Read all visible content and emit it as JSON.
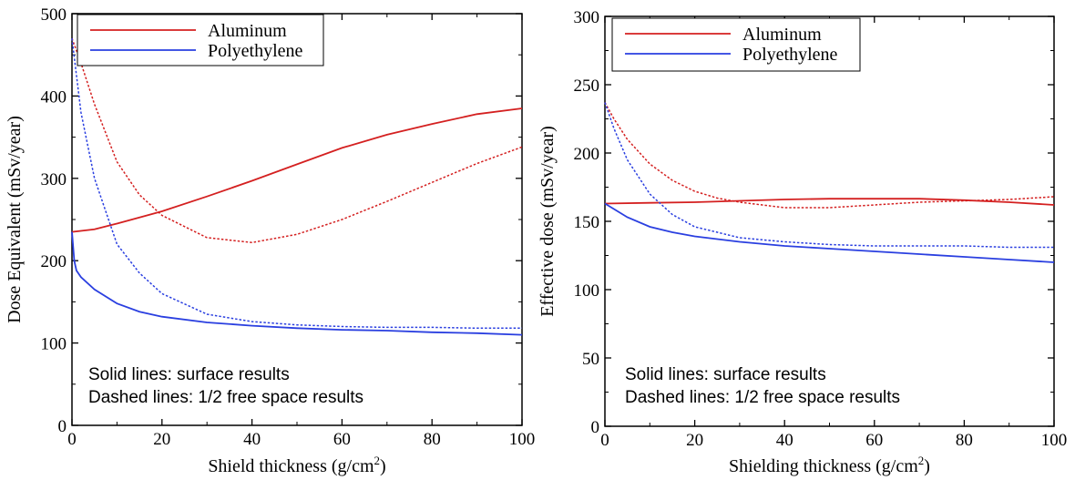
{
  "chart_data": [
    {
      "type": "line",
      "xlabel": "Shield thickness (g/cm",
      "xlabel_sup": "2",
      "xlabel_close": ")",
      "ylabel": "Dose Equivalent (mSv/year)",
      "xlim": [
        0,
        100
      ],
      "ylim": [
        0,
        500
      ],
      "xticks": [
        0,
        20,
        40,
        60,
        80,
        100
      ],
      "yticks": [
        0,
        100,
        200,
        300,
        400,
        500
      ],
      "legend": {
        "position": "top-left",
        "entries": [
          "Aluminum",
          "Polyethylene"
        ]
      },
      "annotations": [
        "Solid lines: surface results",
        "Dashed lines: 1/2 free space results"
      ],
      "series": [
        {
          "name": "Aluminum",
          "style": "solid",
          "color": "#d42020",
          "x": [
            0,
            5,
            10,
            20,
            30,
            40,
            50,
            60,
            70,
            80,
            90,
            100
          ],
          "y": [
            235,
            238,
            245,
            260,
            278,
            297,
            317,
            337,
            353,
            366,
            378,
            385
          ]
        },
        {
          "name": "Aluminum",
          "style": "dashed",
          "color": "#d42020",
          "x": [
            0,
            2,
            5,
            10,
            15,
            20,
            30,
            40,
            50,
            60,
            70,
            80,
            90,
            100
          ],
          "y": [
            470,
            440,
            390,
            320,
            280,
            255,
            228,
            222,
            232,
            250,
            272,
            295,
            318,
            338
          ]
        },
        {
          "name": "Polyethylene",
          "style": "solid",
          "color": "#2a3fe0",
          "x": [
            0,
            0.5,
            1,
            2,
            5,
            10,
            15,
            20,
            30,
            40,
            50,
            60,
            70,
            80,
            90,
            100
          ],
          "y": [
            235,
            200,
            188,
            180,
            165,
            148,
            138,
            132,
            125,
            121,
            118,
            116,
            115,
            113,
            112,
            110
          ]
        },
        {
          "name": "Polyethylene",
          "style": "dashed",
          "color": "#2a3fe0",
          "x": [
            0,
            2,
            5,
            10,
            15,
            20,
            30,
            40,
            50,
            60,
            70,
            80,
            90,
            100
          ],
          "y": [
            470,
            380,
            300,
            220,
            185,
            160,
            135,
            126,
            122,
            120,
            119,
            119,
            118,
            118
          ]
        }
      ]
    },
    {
      "type": "line",
      "xlabel": "Shielding thickness (g/cm",
      "xlabel_sup": "2",
      "xlabel_close": ")",
      "ylabel": "Effective dose (mSv/year)",
      "xlim": [
        0,
        100
      ],
      "ylim": [
        0,
        300
      ],
      "xticks": [
        0,
        20,
        40,
        60,
        80,
        100
      ],
      "yticks": [
        0,
        50,
        100,
        150,
        200,
        250,
        300
      ],
      "legend": {
        "position": "top-left",
        "entries": [
          "Aluminum",
          "Polyethylene"
        ]
      },
      "annotations": [
        "Solid lines: surface results",
        "Dashed lines: 1/2 free space results"
      ],
      "series": [
        {
          "name": "Aluminum",
          "style": "solid",
          "color": "#d42020",
          "x": [
            0,
            10,
            20,
            30,
            40,
            50,
            60,
            70,
            80,
            90,
            100
          ],
          "y": [
            163,
            163.5,
            164,
            165,
            166,
            166.5,
            166.5,
            166.5,
            165.5,
            164,
            162
          ]
        },
        {
          "name": "Aluminum",
          "style": "dashed",
          "color": "#d42020",
          "x": [
            0,
            2,
            5,
            10,
            15,
            20,
            25,
            30,
            40,
            50,
            60,
            70,
            80,
            90,
            100
          ],
          "y": [
            237,
            225,
            210,
            192,
            180,
            172,
            167,
            164,
            160,
            160,
            162,
            164,
            165,
            166,
            168
          ]
        },
        {
          "name": "Polyethylene",
          "style": "solid",
          "color": "#2a3fe0",
          "x": [
            0,
            2,
            5,
            10,
            15,
            20,
            30,
            40,
            50,
            60,
            70,
            80,
            90,
            100
          ],
          "y": [
            163,
            159,
            153,
            146,
            142,
            139,
            135,
            132,
            130,
            128,
            126,
            124,
            122,
            120
          ]
        },
        {
          "name": "Polyethylene",
          "style": "dashed",
          "color": "#2a3fe0",
          "x": [
            0,
            2,
            5,
            10,
            15,
            20,
            30,
            40,
            50,
            60,
            70,
            80,
            90,
            100
          ],
          "y": [
            237,
            218,
            195,
            170,
            155,
            146,
            138,
            135,
            133,
            132,
            132,
            132,
            131,
            131
          ]
        }
      ]
    }
  ]
}
